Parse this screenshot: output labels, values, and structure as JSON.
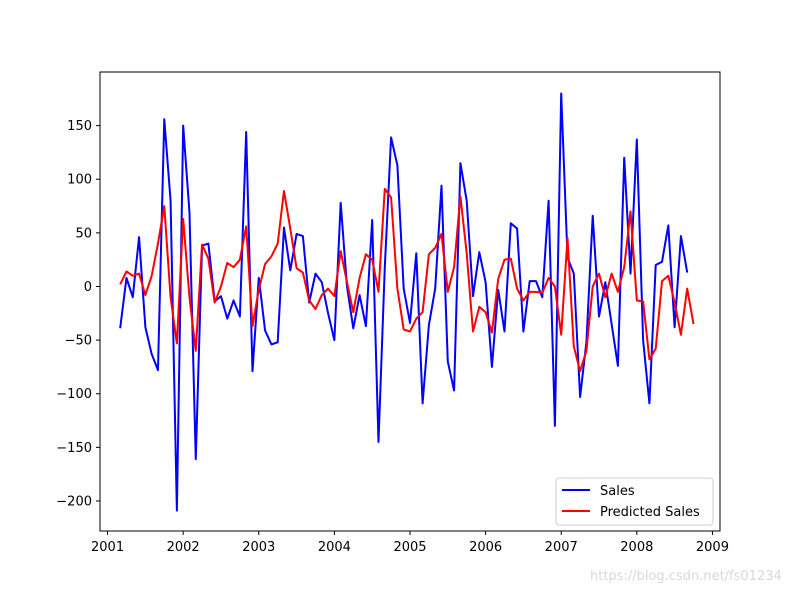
{
  "chart_data": {
    "type": "line",
    "title": "",
    "xlabel": "",
    "ylabel": "",
    "xlim": [
      2000.9,
      2009.1
    ],
    "ylim": [
      -228,
      200
    ],
    "x_ticks": [
      2001,
      2002,
      2003,
      2004,
      2005,
      2006,
      2007,
      2008,
      2009
    ],
    "x_tick_labels": [
      "2001",
      "2002",
      "2003",
      "2004",
      "2005",
      "2006",
      "2007",
      "2008",
      "2009"
    ],
    "y_ticks": [
      150,
      100,
      50,
      0,
      -50,
      -100,
      -150,
      -200
    ],
    "y_tick_labels": [
      "150",
      "100",
      "50",
      "0",
      "−50",
      "−100",
      "−150",
      "−200"
    ],
    "grid": false,
    "legend_position": "lower-right",
    "x_start": 2001.1667,
    "x_step": 0.08333,
    "series": [
      {
        "name": "Sales",
        "color": "#0000ff",
        "values": [
          -39,
          8,
          -10,
          46,
          -38,
          -63,
          -78,
          156,
          80,
          -209,
          150,
          69,
          -161,
          38,
          40,
          -14,
          -9,
          -30,
          -13,
          -28,
          144,
          -79,
          8,
          -41,
          -54,
          -52,
          55,
          15,
          49,
          47,
          -15,
          12,
          4,
          -25,
          -50,
          78,
          0,
          -39,
          -8,
          -37,
          62,
          -145,
          18,
          139,
          113,
          -2,
          -34,
          31,
          -109,
          -36,
          -2,
          94,
          -70,
          -97,
          115,
          80,
          -9,
          32,
          4,
          -75,
          -3,
          -42,
          59,
          54,
          -42,
          5,
          5,
          -10,
          80,
          -130,
          180,
          27,
          12,
          -103,
          -52,
          66,
          -28,
          4,
          -35,
          -74,
          120,
          12,
          137,
          -50,
          -109,
          20,
          23,
          57,
          -38,
          47,
          13
        ]
      },
      {
        "name": "Predicted Sales",
        "color": "#ff0000",
        "values": [
          2,
          14,
          10,
          12,
          -8,
          10,
          40,
          75,
          -10,
          -53,
          63,
          -10,
          -60,
          39,
          26,
          -15,
          0,
          22,
          18,
          25,
          56,
          -37,
          -3,
          21,
          28,
          40,
          89,
          54,
          17,
          13,
          -13,
          -21,
          -8,
          -2,
          -9,
          33,
          4,
          -24,
          8,
          30,
          25,
          -5,
          91,
          83,
          -2,
          -40,
          -42,
          -30,
          -24,
          30,
          36,
          49,
          -5,
          18,
          84,
          31,
          -42,
          -19,
          -24,
          -43,
          7,
          25,
          26,
          -2,
          -13,
          -5,
          -5,
          -6,
          8,
          0,
          -45,
          45,
          -56,
          -79,
          -60,
          0,
          12,
          -10,
          12,
          -5,
          18,
          70,
          -13,
          -14,
          -68,
          -58,
          5,
          10,
          -15,
          -45,
          -2,
          -35
        ]
      }
    ]
  },
  "watermark": "https://blog.csdn.net/fs01234"
}
